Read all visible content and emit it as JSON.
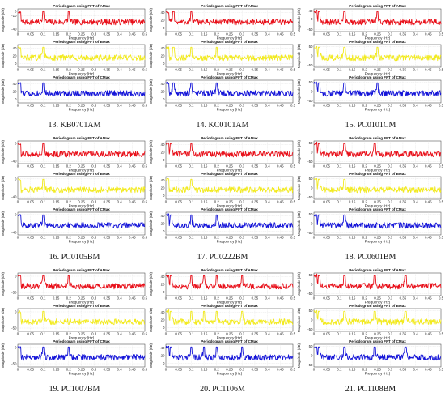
{
  "axis_common": {
    "xlabel": "Frequency (Hz)",
    "ylabel": "Magnitude (dB)",
    "x_ticks": [
      "0",
      "0.05",
      "0.1",
      "0.15",
      "0.2",
      "0.25",
      "0.3",
      "0.35",
      "0.4",
      "0.45",
      "0.5"
    ],
    "xlim": [
      0,
      0.5
    ],
    "grid": true
  },
  "series_colors": {
    "AMax": "#e8101a",
    "BMax": "#f2ea1e",
    "CMax": "#1414d8"
  },
  "plot_titles": {
    "AMax": "Periodogram using FFT of AMax",
    "BMax": "Periodogram using FFT of BMax",
    "CMax": "Periodogram using FFT of CMax"
  },
  "chart_data": [
    {
      "type": "line",
      "caption": "13. KB0701AM",
      "plots": [
        {
          "series": "AMax",
          "y_ticks": [
            "0",
            "-10",
            "-40"
          ],
          "ylim": [
            -45,
            5
          ],
          "peaks": [
            0.1,
            0.2
          ]
        },
        {
          "series": "BMax",
          "y_ticks": [
            "40",
            "20",
            "0"
          ],
          "ylim": [
            -10,
            50
          ],
          "peaks": [
            0.1
          ]
        },
        {
          "series": "CMax",
          "y_ticks": [
            "40",
            "20",
            "0"
          ],
          "ylim": [
            -10,
            50
          ],
          "peaks": [
            0.1
          ]
        }
      ]
    },
    {
      "type": "line",
      "caption": "14. KC0101AM",
      "plots": [
        {
          "series": "AMax",
          "y_ticks": [
            "40",
            "20",
            "0"
          ],
          "ylim": [
            -10,
            50
          ],
          "peaks": [
            0.03,
            0.1
          ]
        },
        {
          "series": "BMax",
          "y_ticks": [
            "40",
            "20",
            "0"
          ],
          "ylim": [
            -10,
            50
          ],
          "peaks": [
            0.03,
            0.1,
            0.2
          ]
        },
        {
          "series": "CMax",
          "y_ticks": [
            "40",
            "20",
            "0"
          ],
          "ylim": [
            -10,
            50
          ],
          "peaks": [
            0.03,
            0.1,
            0.2
          ]
        }
      ]
    },
    {
      "type": "line",
      "caption": "15. PC0101CM",
      "plots": [
        {
          "series": "AMax",
          "y_ticks": [
            "40",
            "0",
            "-50"
          ],
          "ylim": [
            -60,
            50
          ],
          "peaks": [
            0.02,
            0.12,
            0.25
          ]
        },
        {
          "series": "BMax",
          "y_ticks": [
            "50",
            "0",
            "-50"
          ],
          "ylim": [
            -60,
            60
          ],
          "peaks": [
            0.02,
            0.12,
            0.25
          ]
        },
        {
          "series": "CMax",
          "y_ticks": [
            "50",
            "0",
            "-50"
          ],
          "ylim": [
            -60,
            60
          ],
          "peaks": [
            0.02,
            0.12,
            0.25
          ]
        }
      ]
    },
    {
      "type": "line",
      "caption": "16. PC0105BM",
      "plots": [
        {
          "series": "AMax",
          "y_ticks": [
            "0",
            "-40"
          ],
          "ylim": [
            -45,
            5
          ],
          "peaks": [
            0.1
          ]
        },
        {
          "series": "BMax",
          "y_ticks": [
            "0",
            "-40"
          ],
          "ylim": [
            -45,
            5
          ],
          "peaks": [
            0.1
          ]
        },
        {
          "series": "CMax",
          "y_ticks": [
            "0",
            "-40"
          ],
          "ylim": [
            -45,
            5
          ],
          "peaks": [
            0.1
          ]
        }
      ]
    },
    {
      "type": "line",
      "caption": "17. PC0222BM",
      "plots": [
        {
          "series": "AMax",
          "y_ticks": [
            "40",
            "20",
            "0"
          ],
          "ylim": [
            -10,
            50
          ],
          "peaks": [
            0.02,
            0.1
          ]
        },
        {
          "series": "BMax",
          "y_ticks": [
            "40",
            "20",
            "0"
          ],
          "ylim": [
            -10,
            50
          ],
          "peaks": [
            0.1
          ]
        },
        {
          "series": "CMax",
          "y_ticks": [
            "40",
            "20",
            "0"
          ],
          "ylim": [
            -10,
            50
          ],
          "peaks": [
            0.02,
            0.1,
            0.2
          ]
        }
      ]
    },
    {
      "type": "line",
      "caption": "18. PC0601BM",
      "plots": [
        {
          "series": "AMax",
          "y_ticks": [
            "50",
            "0",
            "-50"
          ],
          "ylim": [
            -60,
            60
          ],
          "peaks": [
            0.02,
            0.12,
            0.24
          ]
        },
        {
          "series": "BMax",
          "y_ticks": [
            "50",
            "0",
            "-50"
          ],
          "ylim": [
            -60,
            60
          ],
          "peaks": [
            0.02,
            0.12
          ]
        },
        {
          "series": "CMax",
          "y_ticks": [
            "50",
            "0",
            "-50"
          ],
          "ylim": [
            -60,
            60
          ],
          "peaks": [
            0.02,
            0.12
          ]
        }
      ]
    },
    {
      "type": "line",
      "caption": "19. PC1007BM",
      "plots": [
        {
          "series": "AMax",
          "y_ticks": [
            "0",
            "-50"
          ],
          "ylim": [
            -60,
            10
          ],
          "peaks": [
            0.1,
            0.2
          ]
        },
        {
          "series": "BMax",
          "y_ticks": [
            "0",
            "-50"
          ],
          "ylim": [
            -60,
            10
          ],
          "peaks": [
            0.1
          ]
        },
        {
          "series": "CMax",
          "y_ticks": [
            "0",
            "-50"
          ],
          "ylim": [
            -60,
            10
          ],
          "peaks": [
            0.1,
            0.2
          ]
        }
      ]
    },
    {
      "type": "line",
      "caption": "20. PC1106M",
      "plots": [
        {
          "series": "AMax",
          "y_ticks": [
            "40",
            "20",
            "0"
          ],
          "ylim": [
            -10,
            50
          ],
          "peaks": [
            0.02,
            0.1,
            0.15,
            0.2,
            0.3
          ]
        },
        {
          "series": "BMax",
          "y_ticks": [
            "40",
            "20",
            "0"
          ],
          "ylim": [
            -10,
            50
          ],
          "peaks": [
            0.02,
            0.1,
            0.15,
            0.2,
            0.3
          ]
        },
        {
          "series": "CMax",
          "y_ticks": [
            "40",
            "20",
            "0"
          ],
          "ylim": [
            -10,
            50
          ],
          "peaks": [
            0.02,
            0.1,
            0.15,
            0.2,
            0.3
          ]
        }
      ]
    },
    {
      "type": "line",
      "caption": "21. PC1108BM",
      "plots": [
        {
          "series": "AMax",
          "y_ticks": [
            "50",
            "0",
            "-50"
          ],
          "ylim": [
            -60,
            60
          ],
          "peaks": [
            0.02,
            0.12,
            0.24,
            0.36
          ]
        },
        {
          "series": "BMax",
          "y_ticks": [
            "50",
            "0",
            "-50"
          ],
          "ylim": [
            -60,
            60
          ],
          "peaks": [
            0.02,
            0.12,
            0.24,
            0.36
          ]
        },
        {
          "series": "CMax",
          "y_ticks": [
            "50",
            "0",
            "-50"
          ],
          "ylim": [
            -60,
            60
          ],
          "peaks": [
            0.02,
            0.12,
            0.24,
            0.36
          ]
        }
      ]
    }
  ]
}
